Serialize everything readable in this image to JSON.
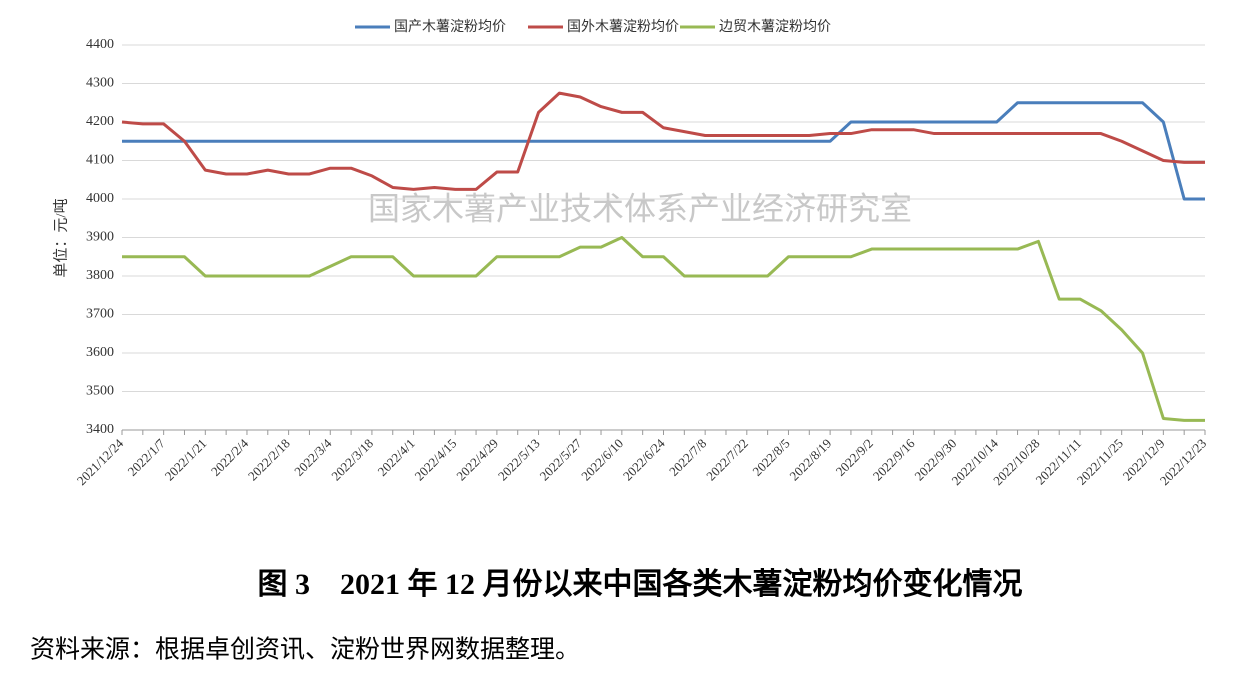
{
  "chart_data": {
    "type": "line",
    "y_label": "单位：元/吨",
    "watermark": "国家木薯产业技术体系产业经济研究室",
    "caption": "图 3　2021 年 12 月份以来中国各类木薯淀粉均价变化情况",
    "source": "资料来源：根据卓创资讯、淀粉世界网数据整理。",
    "categories": [
      "2021/12/24",
      null,
      "2022/1/7",
      null,
      "2022/1/21",
      null,
      "2022/2/4",
      null,
      "2022/2/18",
      null,
      "2022/3/4",
      null,
      "2022/3/18",
      null,
      "2022/4/1",
      null,
      "2022/4/15",
      null,
      "2022/4/29",
      null,
      "2022/5/13",
      null,
      "2022/5/27",
      null,
      "2022/6/10",
      null,
      "2022/6/24",
      null,
      "2022/7/8",
      null,
      "2022/7/22",
      null,
      "2022/8/5",
      null,
      "2022/8/19",
      null,
      "2022/9/2",
      null,
      "2022/9/16",
      null,
      "2022/9/30",
      null,
      "2022/10/14",
      null,
      "2022/10/28",
      null,
      "2022/11/11",
      null,
      "2022/11/25",
      null,
      "2022/12/9",
      null,
      "2022/12/23"
    ],
    "series": [
      {
        "name": "国产木薯淀粉均价",
        "color": "#4a7ebb",
        "values": [
          4150,
          4150,
          4150,
          4150,
          4150,
          4150,
          4150,
          4150,
          4150,
          4150,
          4150,
          4150,
          4150,
          4150,
          4150,
          4150,
          4150,
          4150,
          4150,
          4150,
          4150,
          4150,
          4150,
          4150,
          4150,
          4150,
          4150,
          4150,
          4150,
          4150,
          4150,
          4150,
          4150,
          4150,
          4150,
          4200,
          4200,
          4200,
          4200,
          4200,
          4200,
          4200,
          4200,
          4250,
          4250,
          4250,
          4250,
          4250,
          4250,
          4250,
          4200,
          4000,
          4000
        ]
      },
      {
        "name": "国外木薯淀粉均价",
        "color": "#be4b48",
        "values": [
          4200,
          4195,
          4195,
          4150,
          4075,
          4065,
          4065,
          4075,
          4065,
          4065,
          4080,
          4080,
          4060,
          4030,
          4025,
          4030,
          4025,
          4025,
          4070,
          4070,
          4225,
          4275,
          4265,
          4240,
          4225,
          4225,
          4185,
          4175,
          4165,
          4165,
          4165,
          4165,
          4165,
          4165,
          4170,
          4170,
          4180,
          4180,
          4180,
          4170,
          4170,
          4170,
          4170,
          4170,
          4170,
          4170,
          4170,
          4170,
          4150,
          4125,
          4100,
          4095,
          4095
        ]
      },
      {
        "name": "边贸木薯淀粉均价",
        "color": "#98b954",
        "values": [
          3850,
          3850,
          3850,
          3850,
          3800,
          3800,
          3800,
          3800,
          3800,
          3800,
          3825,
          3850,
          3850,
          3850,
          3800,
          3800,
          3800,
          3800,
          3850,
          3850,
          3850,
          3850,
          3875,
          3875,
          3900,
          3850,
          3850,
          3800,
          3800,
          3800,
          3800,
          3800,
          3850,
          3850,
          3850,
          3850,
          3870,
          3870,
          3870,
          3870,
          3870,
          3870,
          3870,
          3870,
          3890,
          3740,
          3740,
          3710,
          3660,
          3600,
          3430,
          3425,
          3425
        ]
      }
    ],
    "ylim": [
      3400,
      4400
    ],
    "yticks": [
      3400,
      3500,
      3600,
      3700,
      3800,
      3900,
      4000,
      4100,
      4200,
      4300,
      4400
    ],
    "grid": true,
    "legend": "top"
  }
}
